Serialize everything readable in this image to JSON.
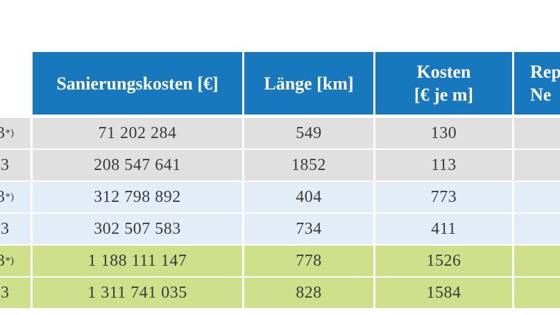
{
  "colors": {
    "header_bg": "#1878BE",
    "header_text": "#FFFFFF",
    "row_gray": "#E0E0E0",
    "row_blue": "#E3EDF7",
    "row_green": "#CFE08B",
    "gridline": "#FFFFFF",
    "cell_text": "#3A3A3A"
  },
  "header": {
    "col_year": "",
    "col_sanierungskosten": "Sanierungskosten [€]",
    "col_laenge": "Länge [km]",
    "col_kosten_line1": "Kosten",
    "col_kosten_line2": "[€ je m]",
    "col_rep_line1": "Rep",
    "col_rep_line2": "Ne"
  },
  "rows": [
    {
      "year": "3",
      "note": "*)",
      "sanierungskosten": "71 202 284",
      "laenge": "549",
      "kosten": "130",
      "rep": "",
      "band": "gray"
    },
    {
      "year": "3",
      "note": "",
      "sanierungskosten": "208 547 641",
      "laenge": "1852",
      "kosten": "113",
      "rep": "",
      "band": "gray"
    },
    {
      "year": "3",
      "note": "*)",
      "sanierungskosten": "312 798 892",
      "laenge": "404",
      "kosten": "773",
      "rep": "",
      "band": "blue"
    },
    {
      "year": "3",
      "note": "",
      "sanierungskosten": "302 507 583",
      "laenge": "734",
      "kosten": "411",
      "rep": "",
      "band": "blue"
    },
    {
      "year": "3",
      "note": "*)",
      "sanierungskosten": "1 188 111 147",
      "laenge": "778",
      "kosten": "1526",
      "rep": "",
      "band": "green"
    },
    {
      "year": "3",
      "note": "",
      "sanierungskosten": "1 311 741 035",
      "laenge": "828",
      "kosten": "1584",
      "rep": "",
      "band": "green"
    }
  ],
  "chart_data": {
    "type": "table",
    "title": "",
    "columns": [
      "",
      "Sanierungskosten [€]",
      "Länge [km]",
      "Kosten [€ je m]",
      "Rep… Ne… (cut off)"
    ],
    "cells": [
      [
        "3*)",
        "71 202 284",
        "549",
        "130",
        ""
      ],
      [
        "3",
        "208 547 641",
        "1852",
        "113",
        ""
      ],
      [
        "3*)",
        "312 798 892",
        "404",
        "773",
        ""
      ],
      [
        "3",
        "302 507 583",
        "734",
        "411",
        ""
      ],
      [
        "3*)",
        "1 188 111 147",
        "778",
        "1526",
        ""
      ],
      [
        "3",
        "1 311 741 035",
        "828",
        "1584",
        ""
      ]
    ]
  }
}
